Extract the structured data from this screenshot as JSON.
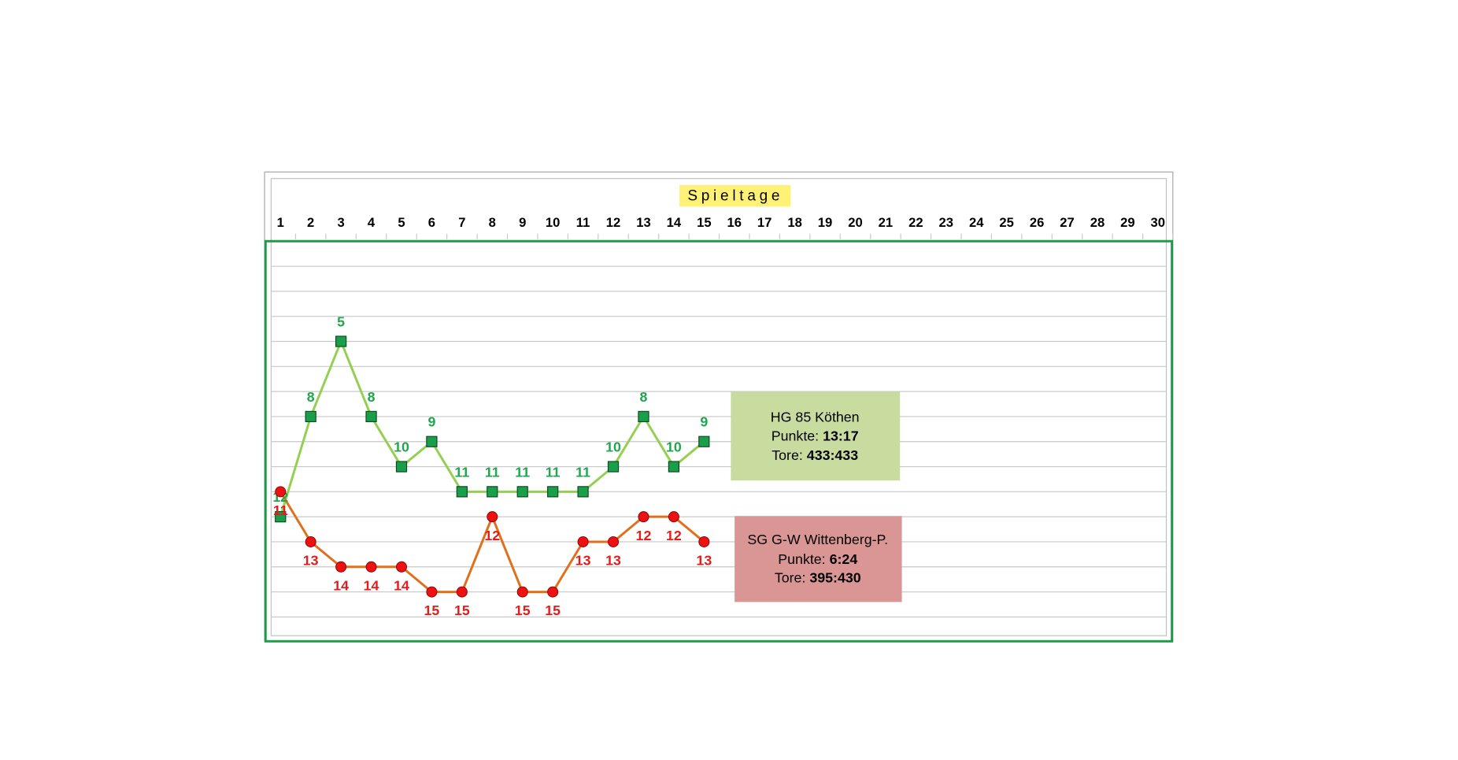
{
  "chart_data": {
    "type": "line",
    "title": "Spieltage",
    "categories": [
      "1",
      "2",
      "3",
      "4",
      "5",
      "6",
      "7",
      "8",
      "9",
      "10",
      "11",
      "12",
      "13",
      "14",
      "15",
      "16",
      "17",
      "18",
      "19",
      "20",
      "21",
      "22",
      "23",
      "24",
      "25",
      "26",
      "27",
      "28",
      "29",
      "30"
    ],
    "ylim": [
      1,
      17
    ],
    "y_inverted": true,
    "yticks": [
      1,
      2,
      3,
      4,
      5,
      6,
      7,
      8,
      9,
      10,
      11,
      12,
      13,
      14,
      15,
      16
    ],
    "ytick_labels": false,
    "grid": true,
    "stat_labels": [
      "Punkte:",
      "Tore:"
    ],
    "series": [
      {
        "name": "HG 85 Köthen",
        "color": "#92d050",
        "marker": "square",
        "marker_color": "#1a9e4a",
        "label_color": "#1fa64f",
        "label_position": "above",
        "box_color": "#c9dca0",
        "points": "13:17",
        "goals": "433:433",
        "values": [
          12,
          8,
          5,
          8,
          10,
          9,
          11,
          11,
          11,
          11,
          11,
          10,
          8,
          10,
          9,
          null,
          null,
          null,
          null,
          null,
          null,
          null,
          null,
          null,
          null,
          null,
          null,
          null,
          null,
          null
        ]
      },
      {
        "name": "SG G-W Wittenberg-P.",
        "color": "#e0701a",
        "marker": "circle",
        "marker_color": "#ee1111",
        "label_color": "#e61b1b",
        "label_position": "below",
        "box_color": "#da9694",
        "points": "6:24",
        "goals": "395:430",
        "values": [
          11,
          13,
          14,
          14,
          14,
          15,
          15,
          12,
          15,
          15,
          13,
          13,
          12,
          12,
          13,
          null,
          null,
          null,
          null,
          null,
          null,
          null,
          null,
          null,
          null,
          null,
          null,
          null,
          null,
          null
        ]
      }
    ]
  }
}
